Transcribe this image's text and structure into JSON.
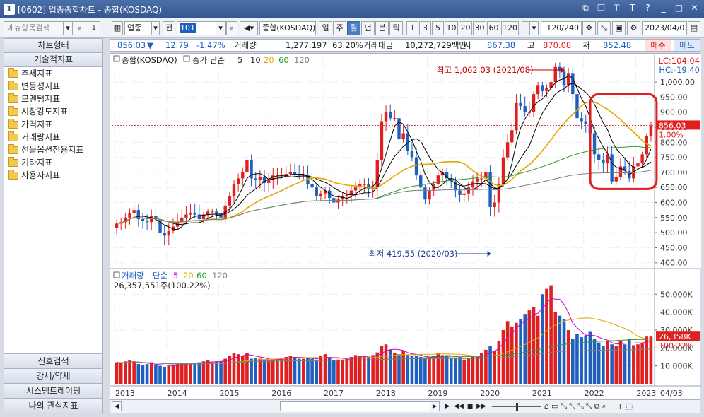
{
  "window": {
    "number": "1",
    "title": "[0602] 업종종합차트 - 종합(KOSDAQ)"
  },
  "toolbar": {
    "market": "업종",
    "prefix": "전",
    "code": "101",
    "index_name": "종합(KOSDAQ)",
    "periods": [
      "일",
      "주",
      "월",
      "년",
      "분",
      "틱"
    ],
    "active_period": "월",
    "intervals": [
      "1",
      "3",
      "5",
      "10",
      "20",
      "30",
      "60",
      "120"
    ],
    "count": "120/240",
    "date": "2023/04/03"
  },
  "left_panel": {
    "search_placeholder": "메뉴항목검색",
    "chart_type": "차트형태",
    "tech_header": "기술적지표",
    "items": [
      "추세지표",
      "변동성지표",
      "모멘텀지표",
      "시장강도지표",
      "가격지표",
      "거래량지표",
      "선물옵션전용지표",
      "기타지표",
      "사용자지표"
    ],
    "bottom": [
      "신호검색",
      "강세/약세",
      "시스템트레이딩",
      "나의 관심지표"
    ]
  },
  "quote": {
    "price": "856.03",
    "arrow": "▼",
    "change": "12.79",
    "change_pct": "-1.47%",
    "volume_label": "거래량",
    "volume": "1,277,197",
    "volume_pct": "63.20%",
    "amount_label": "거래대금",
    "amount": "10,272,729백만",
    "open_label": "시",
    "open": "867.38",
    "high_label": "고",
    "high": "870.08",
    "low_label": "저",
    "low": "852.48",
    "buy": "매수",
    "sell": "매도"
  },
  "price_panel": {
    "legend_name": "종합(KOSDAQ)",
    "ma_label": "종가 단순",
    "ma_periods": [
      "5",
      "10",
      "20",
      "60",
      "120"
    ],
    "ma_colors": [
      "#000000",
      "#000000",
      "#e0a800",
      "#2e9a2e",
      "#808080"
    ],
    "lc": "LC:104.04",
    "hc": "HC:-19.40",
    "high_note": "최고 1,062.03 (2021/08)",
    "low_note": "최저 419.55 (2020/03)",
    "current_tag": "856.03",
    "current_pct": "1.00%",
    "y_labels": [
      "1,000.00",
      "950.00",
      "900.00",
      "850.00",
      "800.00",
      "750.00",
      "700.00",
      "650.00",
      "600.00",
      "550.00",
      "500.00",
      "450.00",
      "400.00"
    ]
  },
  "volume_panel": {
    "legend_name": "거래량",
    "ma_label": "단순",
    "ma_periods": [
      "5",
      "20",
      "60",
      "120"
    ],
    "ma_colors": [
      "#cc00cc",
      "#e0a800",
      "#2e9a2e",
      "#808080"
    ],
    "value_line": "26,357,551주(100.22%)",
    "y_labels": [
      "50,000K",
      "40,000K",
      "30,000K",
      "20,000K",
      "10,000K"
    ],
    "current_tag": "26,358K",
    "current_pct": "100.22%"
  },
  "x_axis": {
    "years": [
      "2013",
      "2014",
      "2015",
      "2016",
      "2017",
      "2018",
      "2019",
      "2020",
      "2021",
      "2022",
      "2023"
    ],
    "last_label": "04/03"
  },
  "colors": {
    "up": "#e02020",
    "down": "#1e5fbf",
    "highlight": "#e02020"
  },
  "chart_data": {
    "type": "candlestick",
    "x_start": "2013/01",
    "months": 124,
    "close": [
      530,
      535,
      550,
      565,
      575,
      545,
      540,
      535,
      555,
      545,
      500,
      490,
      505,
      520,
      535,
      550,
      560,
      565,
      560,
      545,
      560,
      570,
      570,
      560,
      550,
      590,
      620,
      660,
      680,
      700,
      740,
      680,
      675,
      685,
      665,
      675,
      690,
      690,
      690,
      695,
      700,
      695,
      690,
      690,
      660,
      650,
      620,
      630,
      640,
      615,
      600,
      610,
      620,
      625,
      640,
      650,
      660,
      660,
      645,
      650,
      740,
      870,
      900,
      880,
      880,
      810,
      830,
      770,
      750,
      690,
      650,
      610,
      640,
      660,
      690,
      700,
      680,
      670,
      640,
      625,
      630,
      650,
      670,
      680,
      680,
      700,
      585,
      600,
      660,
      750,
      800,
      840,
      930,
      920,
      900,
      900,
      960,
      990,
      970,
      980,
      1000,
      1050,
      1035,
      990,
      1030,
      960,
      880,
      870,
      860,
      830,
      760,
      740,
      730,
      760,
      670,
      685,
      720,
      705,
      680,
      720,
      730,
      760,
      820,
      856
    ],
    "volume_k": [
      12000,
      11500,
      12500,
      13000,
      12500,
      11000,
      10500,
      11000,
      11500,
      10500,
      10000,
      9500,
      10000,
      10500,
      11000,
      11500,
      11500,
      11000,
      11500,
      12000,
      12500,
      13000,
      12000,
      12500,
      12500,
      14000,
      15500,
      17000,
      16500,
      15500,
      17000,
      14000,
      14500,
      14000,
      13500,
      13000,
      13500,
      14000,
      14500,
      15000,
      15500,
      15000,
      14000,
      14000,
      14500,
      14000,
      13500,
      15500,
      16500,
      14500,
      13000,
      13500,
      13500,
      14000,
      15000,
      16000,
      15500,
      15500,
      15000,
      16000,
      17500,
      21000,
      22000,
      19000,
      17000,
      16500,
      18500,
      16000,
      15500,
      15500,
      15000,
      14000,
      15000,
      15500,
      17000,
      16000,
      15500,
      14500,
      14000,
      14000,
      13500,
      14500,
      15000,
      15000,
      17000,
      19000,
      21000,
      18500,
      24000,
      30000,
      35000,
      32000,
      34000,
      36000,
      39000,
      41000,
      43000,
      38000,
      50000,
      53000,
      55000,
      40000,
      38000,
      36000,
      30000,
      25000,
      28000,
      26000,
      27000,
      29000,
      25000,
      23000,
      21000,
      24000,
      22000,
      21000,
      24000,
      22000,
      25000,
      21500,
      22000,
      23000,
      26358,
      26358
    ],
    "y_range": [
      390,
      1080
    ],
    "volume_range": [
      0,
      58000
    ]
  }
}
